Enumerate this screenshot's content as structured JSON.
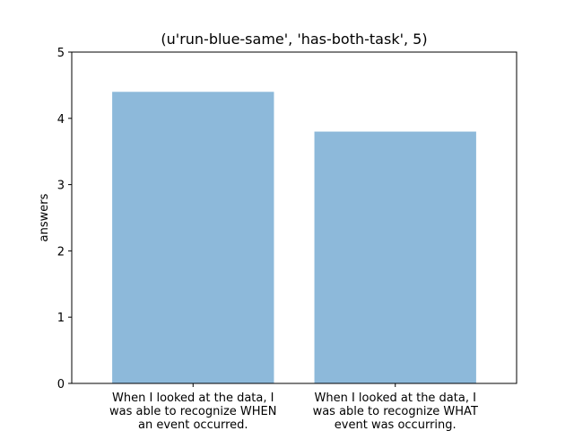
{
  "chart_data": {
    "type": "bar",
    "title": "(u'run-blue-same', 'has-both-task', 5)",
    "xlabel": "",
    "ylabel": "answers",
    "ylim": [
      0,
      5
    ],
    "yticks": [
      0,
      1,
      2,
      3,
      4,
      5
    ],
    "categories": [
      [
        "When I looked at the data, I",
        "was able to recognize WHEN",
        "an event occurred."
      ],
      [
        "When I looked at the data, I",
        "was able to recognize WHAT",
        "event was occurring."
      ]
    ],
    "values": [
      4.4,
      3.8
    ],
    "bar_color": "#8db9da",
    "grid": false,
    "legend": "none"
  }
}
